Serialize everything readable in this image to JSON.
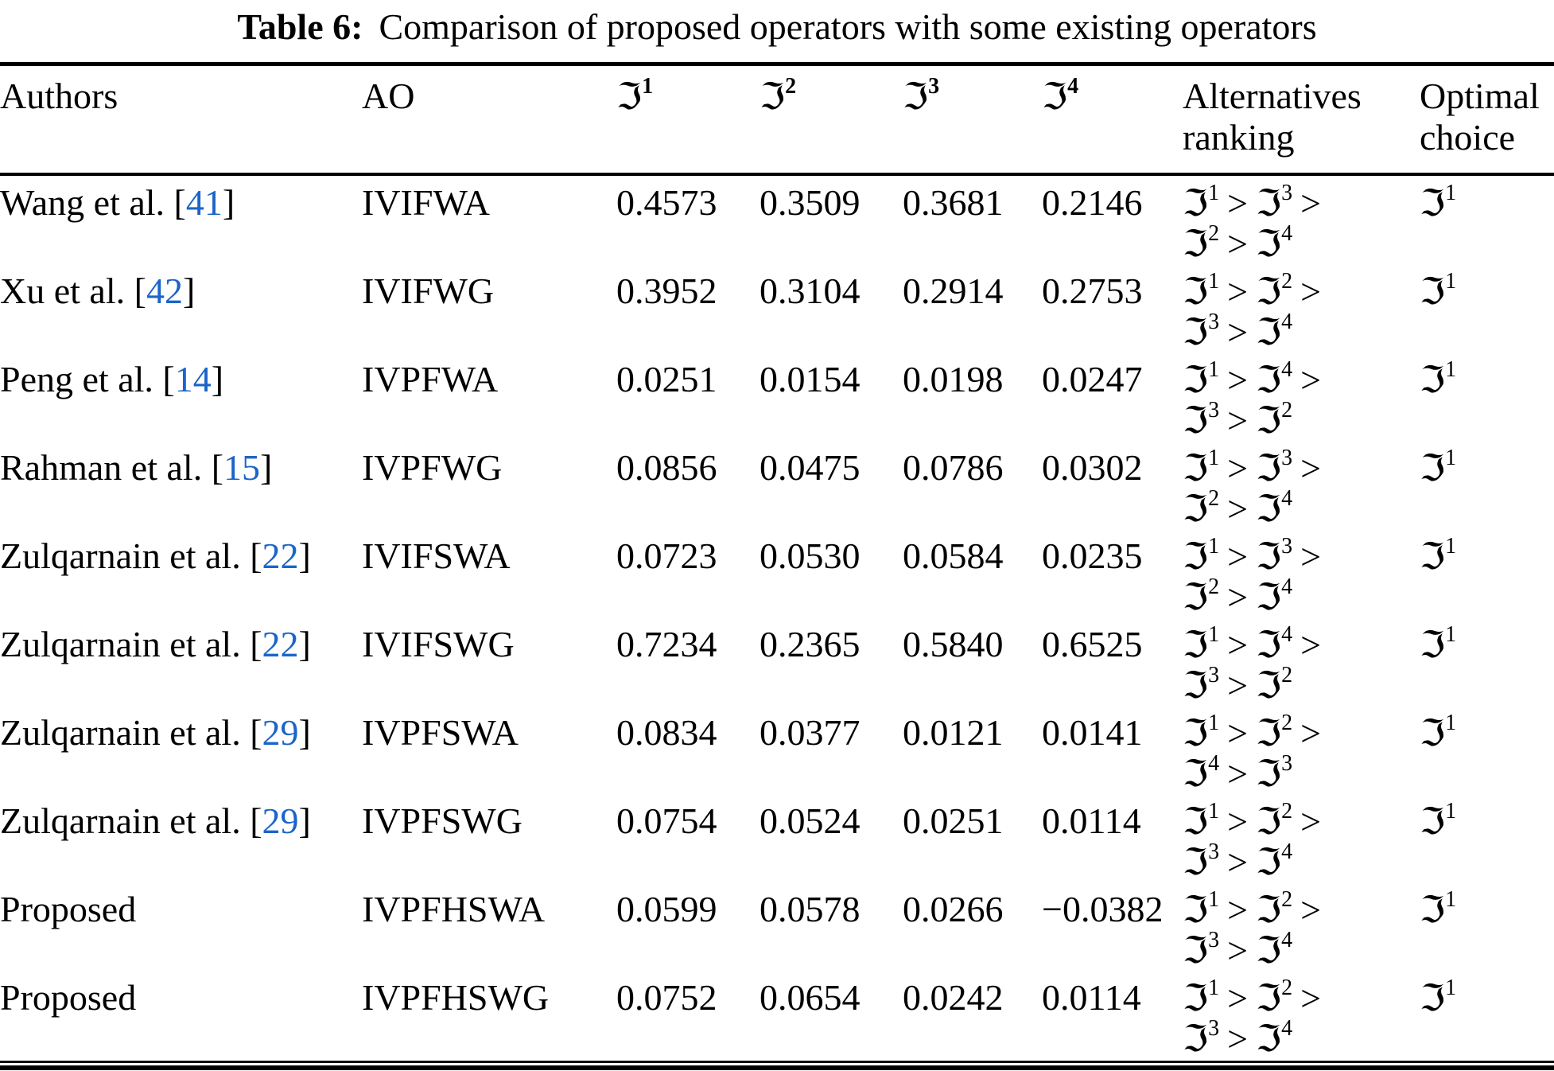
{
  "page": {
    "background": "#ffffff",
    "text_color": "#000000",
    "link_color": "#1b65c9"
  },
  "caption": {
    "label": "Table 6:",
    "text": "Comparison of proposed operators with some existing operators"
  },
  "symbols": {
    "score_symbol": "ℑ",
    "greater_than": ">",
    "open_bracket": "[",
    "close_bracket": "]"
  },
  "table": {
    "headers": {
      "authors": "Authors",
      "ao": "AO",
      "score_superscripts": [
        "1",
        "2",
        "3",
        "4"
      ],
      "alternatives_ranking": "Alternatives ranking",
      "optimal_choice": "Optimal choice"
    },
    "rows": [
      {
        "author": "Wang et al.",
        "cite": "41",
        "ao": "IVIFWA",
        "scores": [
          "0.4573",
          "0.3509",
          "0.3681",
          "0.2146"
        ],
        "ranking": [
          "1",
          "3",
          "2",
          "4"
        ],
        "optimal": "1"
      },
      {
        "author": "Xu et al.",
        "cite": "42",
        "ao": "IVIFWG",
        "scores": [
          "0.3952",
          "0.3104",
          "0.2914",
          "0.2753"
        ],
        "ranking": [
          "1",
          "2",
          "3",
          "4"
        ],
        "optimal": "1"
      },
      {
        "author": "Peng et al.",
        "cite": "14",
        "ao": "IVPFWA",
        "scores": [
          "0.0251",
          "0.0154",
          "0.0198",
          "0.0247"
        ],
        "ranking": [
          "1",
          "4",
          "3",
          "2"
        ],
        "optimal": "1"
      },
      {
        "author": "Rahman et al.",
        "cite": "15",
        "ao": "IVPFWG",
        "scores": [
          "0.0856",
          "0.0475",
          "0.0786",
          "0.0302"
        ],
        "ranking": [
          "1",
          "3",
          "2",
          "4"
        ],
        "optimal": "1"
      },
      {
        "author": "Zulqarnain et al.",
        "cite": "22",
        "ao": "IVIFSWA",
        "scores": [
          "0.0723",
          "0.0530",
          "0.0584",
          "0.0235"
        ],
        "ranking": [
          "1",
          "3",
          "2",
          "4"
        ],
        "optimal": "1"
      },
      {
        "author": "Zulqarnain et al.",
        "cite": "22",
        "ao": "IVIFSWG",
        "scores": [
          "0.7234",
          "0.2365",
          "0.5840",
          "0.6525"
        ],
        "ranking": [
          "1",
          "4",
          "3",
          "2"
        ],
        "optimal": "1"
      },
      {
        "author": "Zulqarnain et al.",
        "cite": "29",
        "ao": "IVPFSWA",
        "scores": [
          "0.0834",
          "0.0377",
          "0.0121",
          "0.0141"
        ],
        "ranking": [
          "1",
          "2",
          "4",
          "3"
        ],
        "optimal": "1"
      },
      {
        "author": "Zulqarnain et al.",
        "cite": "29",
        "ao": "IVPFSWG",
        "scores": [
          "0.0754",
          "0.0524",
          "0.0251",
          "0.0114"
        ],
        "ranking": [
          "1",
          "2",
          "3",
          "4"
        ],
        "optimal": "1"
      },
      {
        "author": "Proposed",
        "cite": null,
        "ao": "IVPFHSWA",
        "scores": [
          "0.0599",
          "0.0578",
          "0.0266",
          "−0.0382"
        ],
        "ranking": [
          "1",
          "2",
          "3",
          "4"
        ],
        "optimal": "1"
      },
      {
        "author": "Proposed",
        "cite": null,
        "ao": "IVPFHSWG",
        "scores": [
          "0.0752",
          "0.0654",
          "0.0242",
          "0.0114"
        ],
        "ranking": [
          "1",
          "2",
          "3",
          "4"
        ],
        "optimal": "1"
      }
    ]
  }
}
